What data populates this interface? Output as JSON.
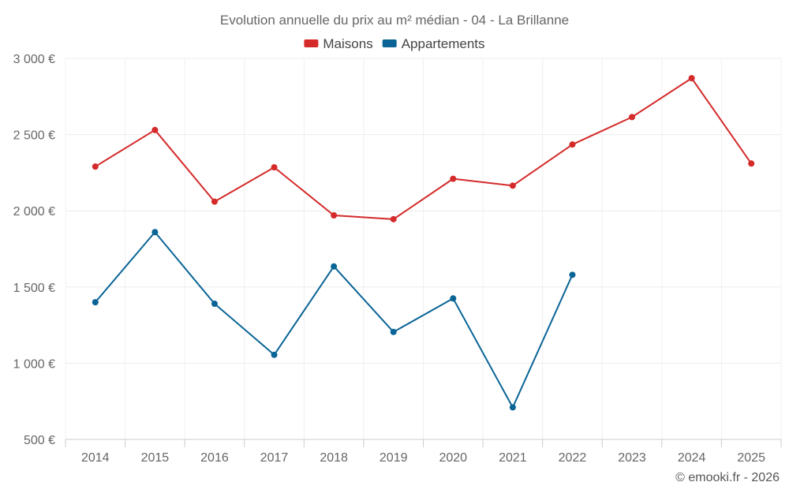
{
  "chart_data": {
    "type": "line",
    "title": "Evolution annuelle du prix au m² médian - 04 - La Brillanne",
    "categories": [
      "2014",
      "2015",
      "2016",
      "2017",
      "2018",
      "2019",
      "2020",
      "2021",
      "2022",
      "2023",
      "2024",
      "2025"
    ],
    "series": [
      {
        "name": "Maisons",
        "color": "#d42a2a",
        "values": [
          2290,
          2530,
          2060,
          2285,
          1970,
          1945,
          2210,
          2165,
          2435,
          2615,
          2870,
          2310
        ]
      },
      {
        "name": "Appartements",
        "color": "#0a6496",
        "values": [
          1400,
          1860,
          1390,
          1055,
          1635,
          1205,
          1425,
          710,
          1580,
          null,
          null,
          null
        ]
      }
    ],
    "ylim": [
      500,
      3000
    ],
    "y_ticks": [
      500,
      1000,
      1500,
      2000,
      2500,
      3000
    ],
    "y_tick_labels": [
      "500 €",
      "1 000 €",
      "1 500 €",
      "2 000 €",
      "2 500 €",
      "3 000 €"
    ],
    "grid": true,
    "legend_position": "top-center",
    "credit": "© emooki.fr - 2026"
  }
}
